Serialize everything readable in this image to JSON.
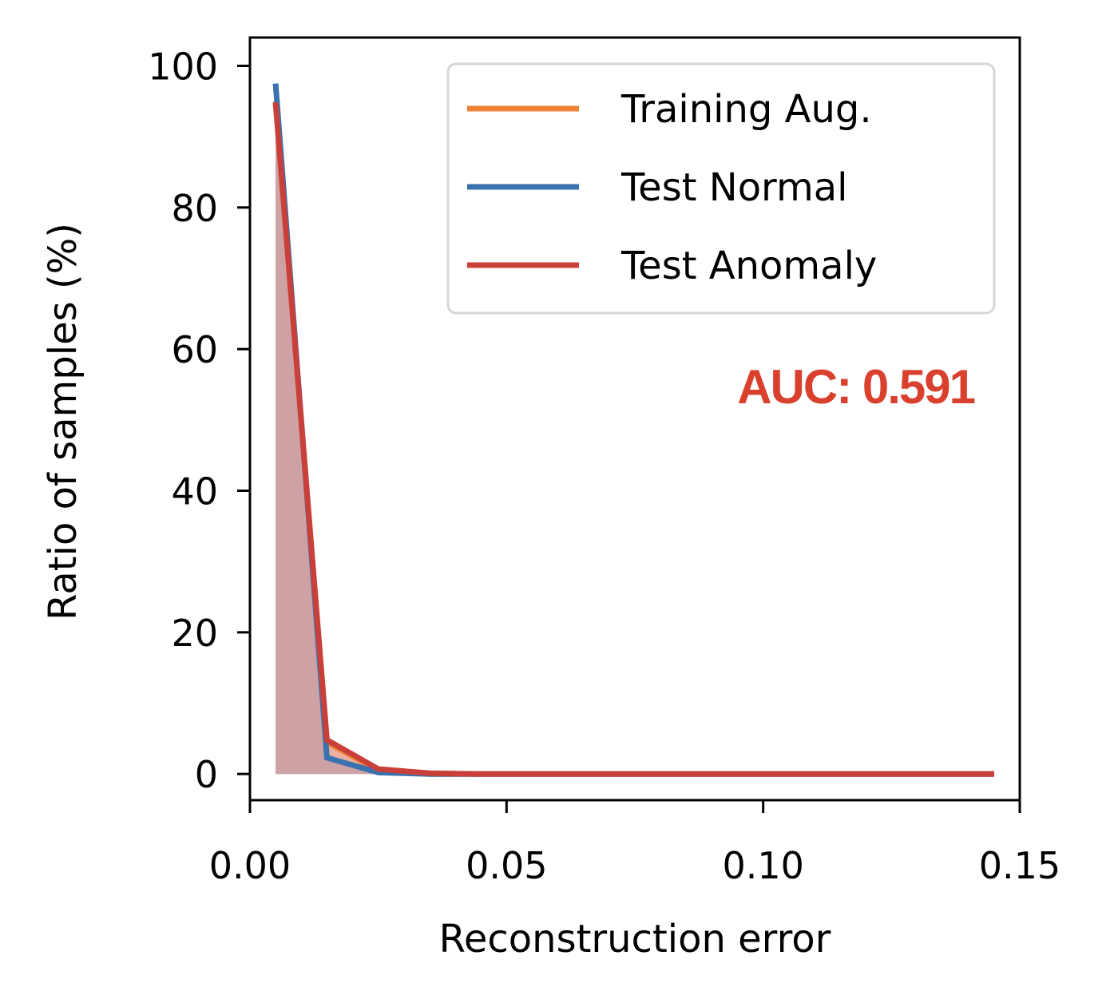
{
  "chart_data": {
    "type": "area",
    "xlabel": "Reconstruction error",
    "ylabel": "Ratio of samples (%)",
    "xlim": [
      0.0,
      0.15
    ],
    "ylim": [
      -3.7,
      104
    ],
    "x_ticks": [
      "0.00",
      "0.05",
      "0.10",
      "0.15"
    ],
    "x_tick_values": [
      0.0,
      0.05,
      0.1,
      0.15
    ],
    "y_ticks": [
      "0",
      "20",
      "40",
      "60",
      "80",
      "100"
    ],
    "y_tick_values": [
      0,
      20,
      40,
      60,
      80,
      100
    ],
    "grid": false,
    "legend_position": "upper right",
    "x": [
      0.005,
      0.015,
      0.025,
      0.035,
      0.045,
      0.055,
      0.065,
      0.075,
      0.085,
      0.095,
      0.105,
      0.115,
      0.125,
      0.135,
      0.145
    ],
    "series": [
      {
        "name": "Training Aug.",
        "color": "#ee8434",
        "fill": "#f5b98a",
        "values": [
          95.0,
          4.5,
          0.5,
          0,
          0,
          0,
          0,
          0,
          0,
          0,
          0,
          0,
          0,
          0,
          0
        ]
      },
      {
        "name": "Test Normal",
        "color": "#3a72b0",
        "fill": "#7a9cc8",
        "values": [
          97.5,
          2.3,
          0.2,
          0,
          0,
          0,
          0,
          0,
          0,
          0,
          0,
          0,
          0,
          0,
          0
        ]
      },
      {
        "name": "Test Anomaly",
        "color": "#c9403a",
        "fill": "#e49690",
        "values": [
          94.8,
          4.8,
          0.7,
          0.1,
          0,
          0,
          0,
          0,
          0,
          0,
          0,
          0,
          0,
          0,
          0
        ]
      }
    ],
    "annotation": {
      "text": "AUC: 0.591",
      "color": "#d9402e"
    }
  }
}
